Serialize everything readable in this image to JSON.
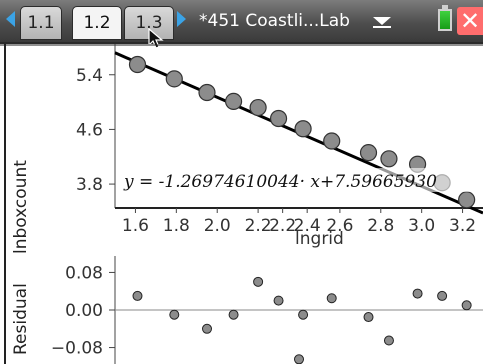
{
  "tabs": [
    {
      "label": "1.1",
      "active": false
    },
    {
      "label": "1.2",
      "active": true
    },
    {
      "label": "1.3",
      "active": false
    }
  ],
  "document": {
    "title": "*451 Coastli...Lab"
  },
  "icons": {
    "nav_left": "left-arrow-icon",
    "nav_right": "right-arrow-icon",
    "dropdown": "chevron-down-icon",
    "battery": "battery-icon",
    "close": "close-icon",
    "cursor": "mouse-pointer-icon",
    "close_glyph": "✕"
  },
  "colors": {
    "accent": "#3ba3e6",
    "close_bg": "#ff6d6d",
    "battery": "#3fd13f",
    "point_fill": "#8c8c8c"
  },
  "chart_data": [
    {
      "type": "scatter",
      "title": "",
      "xlabel": "lngrid",
      "ylabel": "lnboxcount",
      "xlim": [
        1.5,
        3.3
      ],
      "ylim": [
        3.45,
        5.85
      ],
      "yticks": [
        "3.8",
        "4.6",
        "5.4"
      ],
      "xticks": [
        "1.6",
        "1.8",
        "2.0",
        "2.2",
        "2.2",
        "2.4",
        "2.6",
        "2.8",
        "3.0",
        "3.2"
      ],
      "x": [
        1.61,
        1.79,
        1.95,
        2.08,
        2.2,
        2.3,
        2.42,
        2.56,
        2.74,
        2.84,
        2.98,
        3.1,
        3.22
      ],
      "y": [
        5.55,
        5.34,
        5.14,
        5.01,
        4.92,
        4.76,
        4.61,
        4.43,
        4.26,
        4.17,
        4.09,
        3.82,
        3.57
      ],
      "regression": {
        "label": "y = -1.26974610044· x+7.59665930",
        "slope": -1.26974610044,
        "intercept": 7.5966593
      }
    },
    {
      "type": "scatter",
      "title": "",
      "xlabel": "",
      "ylabel": "Residual",
      "xlim": [
        1.5,
        3.3
      ],
      "ylim": [
        -0.115,
        0.115
      ],
      "yticks": [
        "0.08",
        "0.00",
        "−0.08"
      ],
      "x": [
        1.61,
        1.79,
        1.95,
        2.08,
        2.2,
        2.3,
        2.42,
        2.56,
        2.74,
        2.84,
        2.98,
        3.1,
        3.22
      ],
      "residuals": [
        0.03,
        -0.01,
        -0.04,
        -0.01,
        0.06,
        0.02,
        -0.01,
        0.025,
        -0.015,
        -0.065,
        0.035,
        0.03,
        0.01
      ],
      "hidden_residuals": [
        -0.105
      ]
    }
  ]
}
